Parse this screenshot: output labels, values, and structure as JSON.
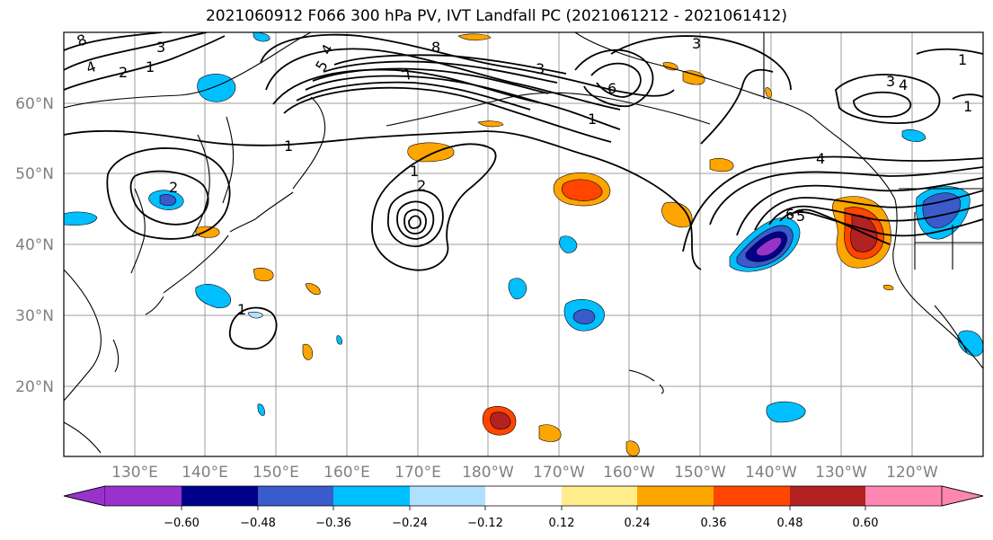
{
  "title": "2021060912 F066 300 hPa PV, IVT Landfall PC (2021061212 - 2021061412)",
  "map": {
    "lat_labels": [
      "60°N",
      "50°N",
      "40°N",
      "30°N",
      "20°N"
    ],
    "lon_labels": [
      "130°E",
      "140°E",
      "150°E",
      "160°E",
      "170°E",
      "180°W",
      "170°W",
      "160°W",
      "150°W",
      "140°W",
      "130°W",
      "120°W"
    ],
    "contour_labels": [
      "8",
      "4",
      "2",
      "1",
      "3",
      "1",
      "5",
      "4",
      "7",
      "8",
      "3",
      "6",
      "1",
      "3",
      "4",
      "1",
      "2",
      "1",
      "2",
      "1",
      "4",
      "6",
      "5",
      "1",
      "3"
    ]
  },
  "colorbar": {
    "ticks": [
      "−0.60",
      "−0.48",
      "−0.36",
      "−0.24",
      "−0.12",
      "0.12",
      "0.24",
      "0.36",
      "0.48",
      "0.60"
    ],
    "colors": [
      "#9932cc",
      "#00008b",
      "#3a5bcc",
      "#00bfff",
      "#b0e0ff",
      "#ffffff",
      "#ffec8b",
      "#ffa500",
      "#ff4500",
      "#b22222",
      "#ff86b0"
    ]
  }
}
